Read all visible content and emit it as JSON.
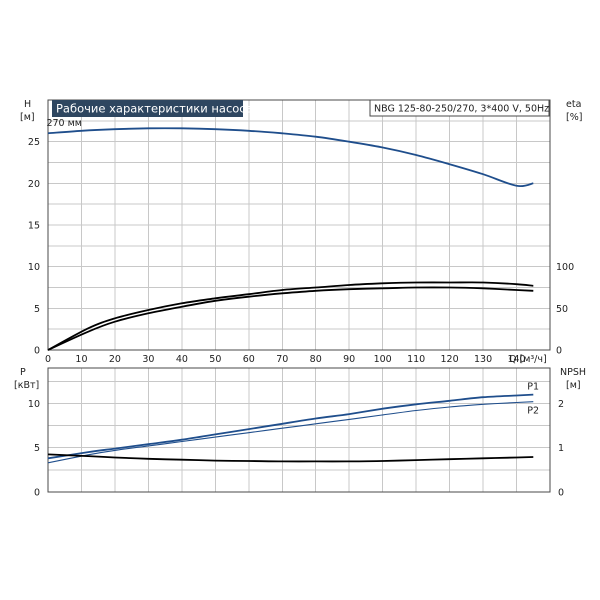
{
  "chart_data": [
    {
      "type": "line",
      "title": "Рабочие характеристики насоса",
      "info_label": "NBG 125-80-250/270, 3*400 V, 50Hz",
      "y_left": {
        "label": "H",
        "unit": "[м]",
        "range": [
          0,
          30
        ],
        "ticks": [
          0,
          5,
          10,
          15,
          20,
          25
        ]
      },
      "y_right": {
        "label": "eta",
        "unit": "[%]",
        "ticks": [
          0,
          50,
          100
        ]
      },
      "x": {
        "label": "Q [м³/ч]",
        "range": [
          0,
          150
        ],
        "ticks": [
          0,
          10,
          20,
          30,
          40,
          50,
          60,
          70,
          80,
          90,
          100,
          110,
          120,
          130,
          140
        ]
      },
      "grid": true,
      "series": [
        {
          "name": "270 мм",
          "axis": "left",
          "color": "#1f4e8c",
          "x": [
            0,
            10,
            20,
            30,
            40,
            50,
            60,
            70,
            80,
            90,
            100,
            110,
            120,
            130,
            140,
            145
          ],
          "y": [
            26.0,
            26.3,
            26.5,
            26.6,
            26.6,
            26.5,
            26.3,
            26.0,
            25.6,
            25.0,
            24.3,
            23.4,
            22.3,
            21.1,
            19.7,
            20.0
          ]
        },
        {
          "axis": "left",
          "color": "#000000",
          "x": [
            0,
            12,
            20,
            30,
            40,
            50,
            60,
            70,
            80,
            90,
            100,
            110,
            120,
            130,
            140,
            145
          ],
          "y": [
            0,
            2.6,
            3.8,
            4.8,
            5.6,
            6.2,
            6.7,
            7.2,
            7.5,
            7.8,
            8.0,
            8.1,
            8.1,
            8.1,
            7.9,
            7.7
          ]
        },
        {
          "axis": "left",
          "color": "#000000",
          "x": [
            0,
            12,
            20,
            30,
            40,
            50,
            60,
            70,
            80,
            90,
            100,
            110,
            120,
            130,
            140,
            145
          ],
          "y": [
            0,
            2.2,
            3.4,
            4.4,
            5.2,
            5.9,
            6.4,
            6.8,
            7.1,
            7.3,
            7.4,
            7.5,
            7.5,
            7.4,
            7.2,
            7.1
          ]
        }
      ]
    },
    {
      "type": "line",
      "y_left": {
        "label": "P",
        "unit": "[кВт]",
        "range": [
          0,
          14
        ],
        "ticks": [
          0,
          5,
          10
        ]
      },
      "y_right": {
        "label": "NPSH",
        "unit": "[м]",
        "range": [
          0,
          2.8
        ],
        "ticks": [
          0,
          1,
          2
        ]
      },
      "x": {
        "range": [
          0,
          150
        ]
      },
      "grid": true,
      "series": [
        {
          "name": "P1",
          "axis": "left",
          "color": "#1f4e8c",
          "x": [
            0,
            12,
            20,
            30,
            40,
            50,
            60,
            70,
            80,
            90,
            100,
            110,
            120,
            130,
            140,
            145
          ],
          "y": [
            3.8,
            4.5,
            4.9,
            5.4,
            5.9,
            6.5,
            7.1,
            7.7,
            8.3,
            8.8,
            9.4,
            9.9,
            10.3,
            10.7,
            10.9,
            11.0
          ]
        },
        {
          "name": "P2",
          "axis": "left",
          "color": "#1f4e8c",
          "x": [
            0,
            12,
            20,
            30,
            40,
            50,
            60,
            70,
            80,
            90,
            100,
            110,
            120,
            130,
            140,
            145
          ],
          "y": [
            3.3,
            4.2,
            4.7,
            5.2,
            5.7,
            6.2,
            6.7,
            7.2,
            7.7,
            8.2,
            8.7,
            9.2,
            9.6,
            9.9,
            10.1,
            10.2
          ]
        },
        {
          "axis": "right",
          "color": "#000000",
          "x": [
            0,
            12,
            20,
            30,
            40,
            50,
            60,
            70,
            80,
            90,
            100,
            110,
            120,
            130,
            140,
            145
          ],
          "y": [
            0.85,
            0.81,
            0.78,
            0.75,
            0.73,
            0.71,
            0.7,
            0.69,
            0.69,
            0.69,
            0.7,
            0.72,
            0.74,
            0.76,
            0.78,
            0.79
          ]
        }
      ]
    }
  ]
}
